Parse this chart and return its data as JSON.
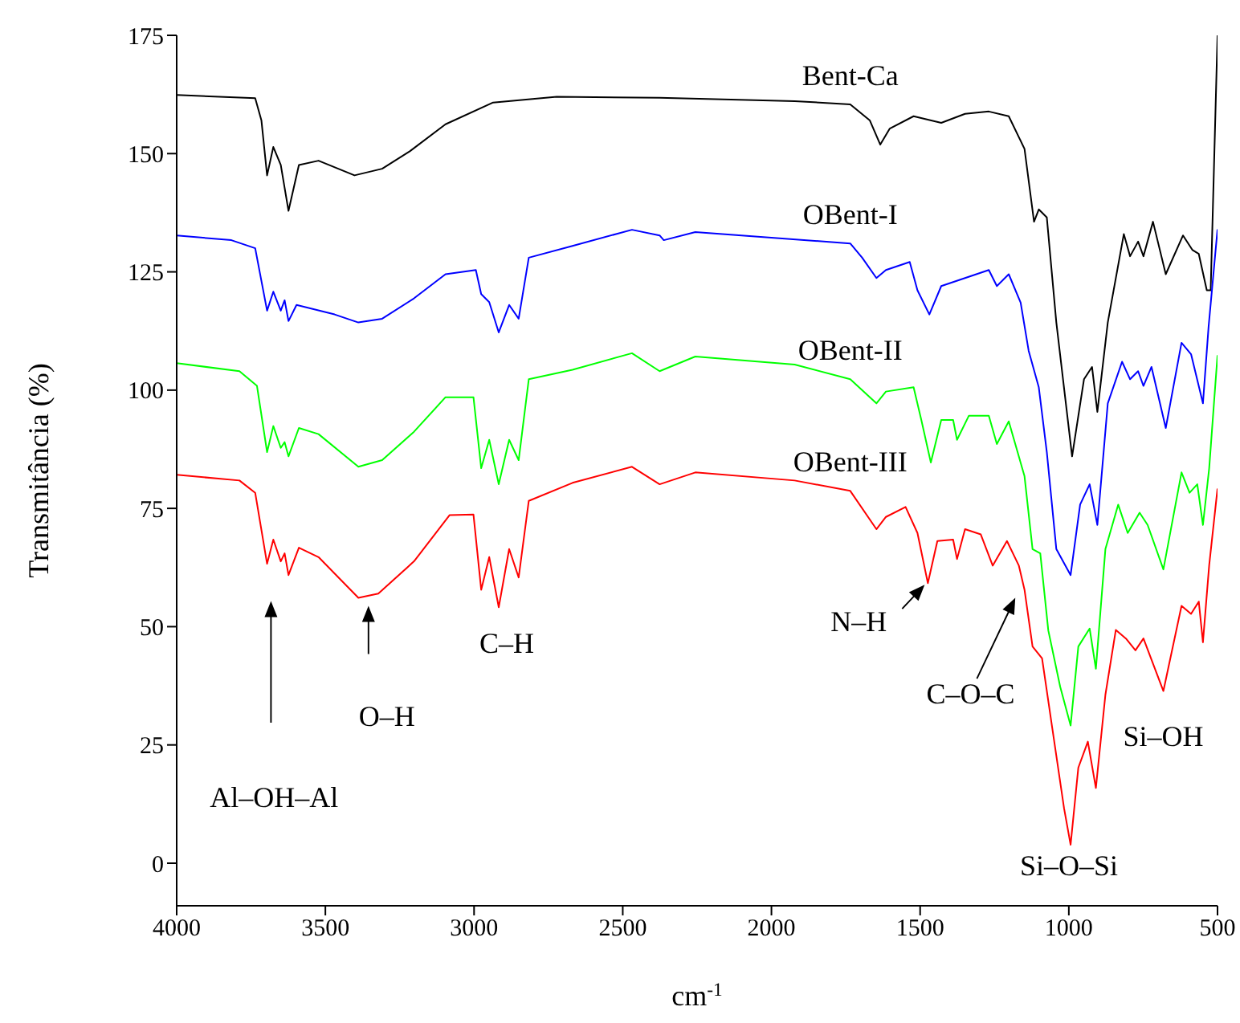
{
  "chart_data": {
    "type": "line",
    "xlabel": "cm$^{-1}$",
    "ylabel": "Transmitância (%)",
    "xlim": [
      4000,
      500
    ],
    "xticks": [
      4000,
      3500,
      3000,
      2500,
      2000,
      1500,
      1000,
      500
    ],
    "ylim": [
      -9,
      175
    ],
    "yticks": [
      0,
      25,
      50,
      75,
      100,
      125,
      150,
      175
    ],
    "grid": false,
    "marker": "none",
    "line_style": "solid",
    "series": [
      {
        "name": "Bent-Ca",
        "color": "#000000",
        "x": [
          4000,
          3736,
          3715,
          3696,
          3675,
          3650,
          3624,
          3589,
          3523,
          3402,
          3309,
          3216,
          3096,
          2936,
          2722,
          2376,
          1922,
          1735,
          1669,
          1634,
          1602,
          1522,
          1429,
          1349,
          1269,
          1202,
          1149,
          1117,
          1101,
          1074,
          1042,
          989,
          949,
          922,
          904,
          869,
          815,
          794,
          767,
          749,
          717,
          674,
          616,
          584,
          563,
          536,
          523,
          500
        ],
        "values": [
          162.4,
          161.7,
          157,
          145.4,
          151.4,
          147.6,
          137.9,
          147.6,
          148.5,
          145.4,
          146.8,
          150.5,
          156.2,
          160.8,
          162,
          161.8,
          161.1,
          160.4,
          157,
          151.9,
          155.3,
          157.9,
          156.5,
          158.4,
          158.9,
          157.9,
          151,
          135.6,
          138.2,
          136.5,
          114.3,
          86,
          102.3,
          104.9,
          95.4,
          114.3,
          133,
          128.3,
          131.4,
          128.3,
          135.6,
          124.5,
          132.7,
          129.6,
          128.8,
          121.1,
          121.1,
          175
        ]
      },
      {
        "name": "OBent-I",
        "color": "#0000ff",
        "x": [
          4000,
          3816,
          3736,
          3696,
          3675,
          3650,
          3637,
          3624,
          3597,
          3469,
          3389,
          3309,
          3202,
          3096,
          2994,
          2976,
          2949,
          2917,
          2882,
          2850,
          2816,
          2669,
          2469,
          2376,
          2362,
          2256,
          1735,
          1695,
          1647,
          1615,
          1535,
          1509,
          1469,
          1429,
          1349,
          1269,
          1242,
          1202,
          1162,
          1135,
          1101,
          1074,
          1042,
          994,
          962,
          930,
          904,
          869,
          821,
          794,
          767,
          749,
          722,
          674,
          621,
          589,
          549,
          530,
          500
        ],
        "values": [
          132.7,
          131.7,
          130,
          116.8,
          120.8,
          116.8,
          119,
          114.6,
          118,
          116,
          114.3,
          115.1,
          119.4,
          124.5,
          125.4,
          120.3,
          118.6,
          112.2,
          118,
          115.1,
          128,
          130.5,
          133.9,
          132.7,
          131.7,
          133.4,
          131,
          128,
          123.7,
          125.4,
          127.1,
          121.1,
          116,
          122,
          123.7,
          125.4,
          122,
          124.5,
          118.5,
          108.3,
          100.6,
          86.9,
          66.4,
          60.9,
          75.8,
          80.1,
          71.5,
          97.2,
          106,
          102.3,
          104,
          100.9,
          104.9,
          92,
          110,
          107.6,
          97.2,
          113.4,
          134
        ]
      },
      {
        "name": "OBent-II",
        "color": "#00ff00",
        "x": [
          4000,
          3789,
          3730,
          3696,
          3675,
          3650,
          3637,
          3624,
          3589,
          3523,
          3389,
          3309,
          3202,
          3096,
          3002,
          2976,
          2949,
          2917,
          2882,
          2850,
          2816,
          2669,
          2469,
          2376,
          2256,
          1922,
          1735,
          1647,
          1615,
          1522,
          1496,
          1464,
          1429,
          1389,
          1376,
          1336,
          1269,
          1242,
          1202,
          1149,
          1122,
          1096,
          1069,
          1029,
          994,
          968,
          930,
          909,
          877,
          834,
          802,
          762,
          735,
          682,
          621,
          594,
          568,
          549,
          528,
          500
        ],
        "values": [
          105.7,
          104,
          100.9,
          86.9,
          92.4,
          87.8,
          89,
          86,
          92,
          90.7,
          83.8,
          85.2,
          91.2,
          98.5,
          98.5,
          83.5,
          89.5,
          80.1,
          89.5,
          85.2,
          102.3,
          104.3,
          107.8,
          104,
          107.1,
          105.4,
          102.3,
          97.2,
          99.7,
          100.6,
          93.7,
          84.7,
          93.7,
          93.7,
          89.5,
          94.6,
          94.6,
          88.6,
          93.4,
          81.8,
          66.4,
          65.5,
          49.2,
          37.3,
          29.1,
          45.8,
          49.6,
          41.1,
          66.4,
          75.8,
          69.8,
          74.1,
          71.5,
          62.1,
          82.6,
          78.3,
          80.1,
          71.5,
          83.5,
          107.4
        ]
      },
      {
        "name": "OBent-III",
        "color": "#ff0000",
        "x": [
          4000,
          3789,
          3736,
          3696,
          3675,
          3650,
          3637,
          3624,
          3589,
          3523,
          3389,
          3322,
          3202,
          3082,
          3002,
          2976,
          2949,
          2917,
          2882,
          2850,
          2816,
          2669,
          2469,
          2376,
          2256,
          1922,
          1735,
          1647,
          1615,
          1549,
          1509,
          1474,
          1442,
          1389,
          1376,
          1349,
          1296,
          1256,
          1208,
          1168,
          1149,
          1122,
          1090,
          1056,
          1016,
          994,
          968,
          936,
          909,
          877,
          842,
          808,
          776,
          749,
          682,
          621,
          589,
          563,
          549,
          528,
          500
        ],
        "values": [
          82.1,
          80.9,
          78.3,
          63.3,
          68.4,
          63.8,
          65.5,
          60.9,
          66.7,
          64.7,
          56.1,
          57,
          63.8,
          73.6,
          73.7,
          57.8,
          64.7,
          54.1,
          66.4,
          60.4,
          76.6,
          80.4,
          83.8,
          80.1,
          82.6,
          80.9,
          78.7,
          70.6,
          73.2,
          75.3,
          69.8,
          59.2,
          68.1,
          68.4,
          64.3,
          70.6,
          69.5,
          62.9,
          68.1,
          62.9,
          57.8,
          45.8,
          43.3,
          28.7,
          11.6,
          3.9,
          20.2,
          25.7,
          15.9,
          35.6,
          49.3,
          47.5,
          45,
          47.5,
          36.4,
          54.4,
          52.7,
          55.3,
          46.7,
          63,
          79.2
        ]
      }
    ],
    "annotations": [
      "Al–OH–Al",
      "O–H",
      {
        "text": "C–H",
        "x": 2917,
        "y": 54
      },
      {
        "text": "N–H",
        "x": 1474,
        "y": 59.2
      },
      "C–O–C",
      {
        "text": "Si–OH",
        "x": 682,
        "y": 36.4
      },
      {
        "text": "Si–O–Si",
        "x": 994,
        "y": 3.9
      }
    ]
  }
}
